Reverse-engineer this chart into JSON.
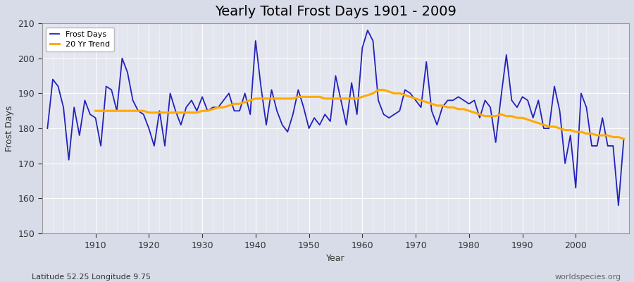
{
  "title": "Yearly Total Frost Days 1901 - 2009",
  "xlabel": "Year",
  "ylabel": "Frost Days",
  "subtitle": "Latitude 52.25 Longitude 9.75",
  "watermark": "worldspecies.org",
  "bg_color": "#d8dce8",
  "plot_bg_color": "#e4e6ef",
  "line_color": "#2222bb",
  "trend_color": "#ffaa00",
  "ylim": [
    150,
    210
  ],
  "xlim": [
    1900,
    2010
  ],
  "years": [
    1901,
    1902,
    1903,
    1904,
    1905,
    1906,
    1907,
    1908,
    1909,
    1910,
    1911,
    1912,
    1913,
    1914,
    1915,
    1916,
    1917,
    1918,
    1919,
    1920,
    1921,
    1922,
    1923,
    1924,
    1925,
    1926,
    1927,
    1928,
    1929,
    1930,
    1931,
    1932,
    1933,
    1934,
    1935,
    1936,
    1937,
    1938,
    1939,
    1940,
    1941,
    1942,
    1943,
    1944,
    1945,
    1946,
    1947,
    1948,
    1949,
    1950,
    1951,
    1952,
    1953,
    1954,
    1955,
    1956,
    1957,
    1958,
    1959,
    1960,
    1961,
    1962,
    1963,
    1964,
    1965,
    1966,
    1967,
    1968,
    1969,
    1970,
    1971,
    1972,
    1973,
    1974,
    1975,
    1976,
    1977,
    1978,
    1979,
    1980,
    1981,
    1982,
    1983,
    1984,
    1985,
    1986,
    1987,
    1988,
    1989,
    1990,
    1991,
    1992,
    1993,
    1994,
    1995,
    1996,
    1997,
    1998,
    1999,
    2000,
    2001,
    2002,
    2003,
    2004,
    2005,
    2006,
    2007,
    2008,
    2009
  ],
  "frost_days": [
    180,
    194,
    192,
    186,
    171,
    186,
    178,
    188,
    184,
    183,
    175,
    192,
    191,
    185,
    200,
    196,
    188,
    185,
    184,
    180,
    175,
    185,
    175,
    190,
    185,
    181,
    186,
    188,
    185,
    189,
    185,
    186,
    186,
    188,
    190,
    185,
    185,
    190,
    184,
    205,
    192,
    181,
    191,
    185,
    181,
    179,
    184,
    191,
    186,
    180,
    183,
    181,
    184,
    182,
    195,
    188,
    181,
    193,
    184,
    203,
    208,
    205,
    188,
    184,
    183,
    184,
    185,
    191,
    190,
    188,
    186,
    199,
    185,
    181,
    186,
    188,
    188,
    189,
    188,
    187,
    188,
    183,
    188,
    186,
    176,
    189,
    201,
    188,
    186,
    189,
    188,
    183,
    188,
    180,
    180,
    192,
    185,
    170,
    178,
    163,
    190,
    186,
    175,
    175,
    183,
    175,
    175,
    158,
    177
  ],
  "trend_values": [
    null,
    null,
    null,
    null,
    null,
    null,
    null,
    null,
    null,
    185.0,
    185.0,
    185.0,
    185.0,
    185.0,
    185.0,
    185.0,
    185.0,
    185.0,
    185.0,
    184.5,
    184.5,
    184.5,
    184.5,
    184.5,
    184.5,
    184.5,
    184.5,
    184.5,
    184.5,
    185.0,
    185.0,
    185.5,
    186.0,
    186.0,
    186.5,
    187.0,
    187.0,
    187.5,
    188.0,
    188.5,
    188.5,
    188.5,
    188.5,
    188.5,
    188.5,
    188.5,
    188.5,
    189.0,
    189.0,
    189.0,
    189.0,
    189.0,
    188.5,
    188.5,
    188.5,
    188.5,
    188.5,
    188.5,
    188.5,
    189.0,
    189.5,
    190.0,
    191.0,
    191.0,
    190.5,
    190.0,
    190.0,
    189.5,
    189.0,
    188.5,
    188.0,
    187.5,
    187.0,
    186.5,
    186.5,
    186.0,
    186.0,
    185.5,
    185.5,
    185.0,
    184.5,
    184.0,
    183.5,
    183.5,
    183.5,
    184.0,
    183.5,
    183.5,
    183.0,
    183.0,
    182.5,
    182.0,
    181.5,
    181.0,
    180.5,
    180.5,
    180.0,
    179.5,
    179.5,
    179.0,
    179.0,
    178.5,
    178.5,
    178.0,
    178.0,
    178.0,
    177.5,
    177.5,
    177.0
  ]
}
